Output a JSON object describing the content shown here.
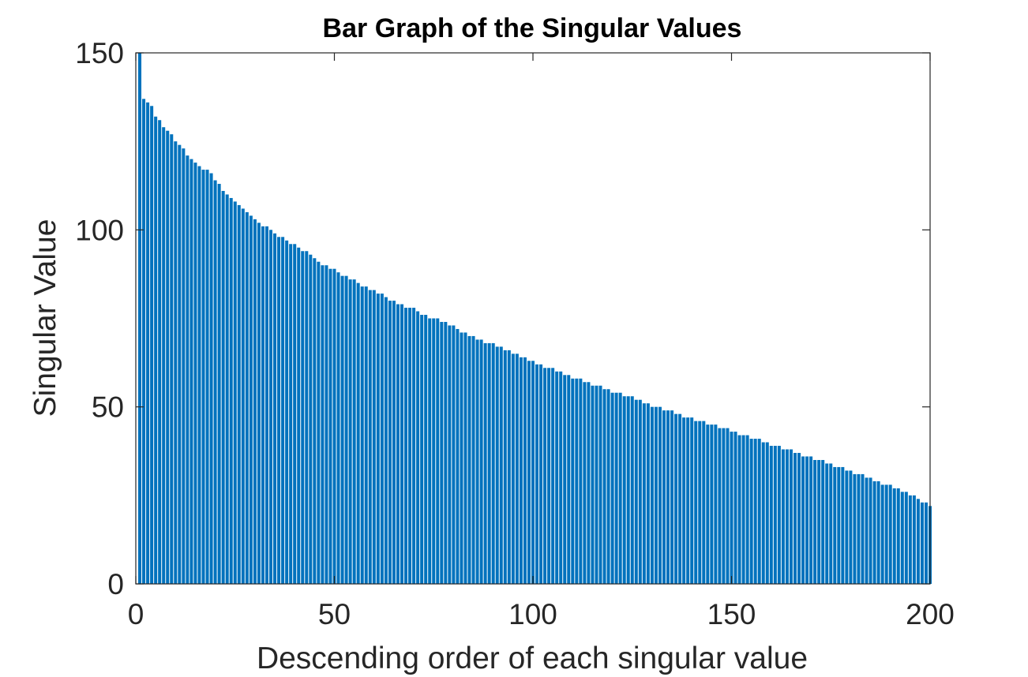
{
  "chart_data": {
    "type": "bar",
    "title": "Bar Graph of the Singular Values",
    "xlabel": "Descending order of each singular value",
    "ylabel": "Singular Value",
    "xlim": [
      0,
      200
    ],
    "ylim": [
      0,
      150
    ],
    "x_ticks": [
      "0",
      "50",
      "100",
      "150",
      "200"
    ],
    "y_ticks": [
      "0",
      "50",
      "100",
      "150"
    ],
    "grid": false,
    "bar_color": "#0072BD",
    "x": [
      1,
      2,
      3,
      4,
      5,
      6,
      7,
      8,
      9,
      10,
      11,
      12,
      13,
      14,
      15,
      16,
      17,
      18,
      19,
      20,
      21,
      22,
      23,
      24,
      25,
      26,
      27,
      28,
      29,
      30,
      31,
      32,
      33,
      34,
      35,
      36,
      37,
      38,
      39,
      40,
      41,
      42,
      43,
      44,
      45,
      46,
      47,
      48,
      49,
      50,
      51,
      52,
      53,
      54,
      55,
      56,
      57,
      58,
      59,
      60,
      61,
      62,
      63,
      64,
      65,
      66,
      67,
      68,
      69,
      70,
      71,
      72,
      73,
      74,
      75,
      76,
      77,
      78,
      79,
      80,
      81,
      82,
      83,
      84,
      85,
      86,
      87,
      88,
      89,
      90,
      91,
      92,
      93,
      94,
      95,
      96,
      97,
      98,
      99,
      100,
      101,
      102,
      103,
      104,
      105,
      106,
      107,
      108,
      109,
      110,
      111,
      112,
      113,
      114,
      115,
      116,
      117,
      118,
      119,
      120,
      121,
      122,
      123,
      124,
      125,
      126,
      127,
      128,
      129,
      130,
      131,
      132,
      133,
      134,
      135,
      136,
      137,
      138,
      139,
      140,
      141,
      142,
      143,
      144,
      145,
      146,
      147,
      148,
      149,
      150,
      151,
      152,
      153,
      154,
      155,
      156,
      157,
      158,
      159,
      160,
      161,
      162,
      163,
      164,
      165,
      166,
      167,
      168,
      169,
      170,
      171,
      172,
      173,
      174,
      175,
      176,
      177,
      178,
      179,
      180,
      181,
      182,
      183,
      184,
      185,
      186,
      187,
      188,
      189,
      190,
      191,
      192,
      193,
      194,
      195,
      196,
      197,
      198,
      199,
      200
    ],
    "values": [
      150,
      137,
      136,
      135,
      132,
      131,
      129,
      128,
      127,
      125,
      124,
      123,
      121,
      120,
      119,
      118,
      117,
      117,
      116,
      114,
      113,
      111,
      110,
      109,
      108,
      107,
      106,
      105,
      104,
      103,
      102,
      101,
      101,
      100,
      99,
      98,
      98,
      97,
      96,
      96,
      95,
      94,
      94,
      93,
      92,
      91,
      90,
      90,
      89,
      89,
      88,
      87,
      87,
      86,
      86,
      85,
      84,
      84,
      83,
      83,
      82,
      82,
      81,
      80,
      80,
      79,
      79,
      78,
      78,
      78,
      77,
      76,
      76,
      75,
      75,
      75,
      74,
      74,
      73,
      73,
      72,
      71,
      71,
      70,
      70,
      69,
      69,
      68,
      68,
      68,
      67,
      67,
      66,
      66,
      65,
      65,
      64,
      64,
      63,
      63,
      62,
      62,
      61,
      61,
      61,
      60,
      60,
      59,
      59,
      58,
      58,
      58,
      57,
      57,
      56,
      56,
      56,
      55,
      55,
      54,
      54,
      54,
      53,
      53,
      53,
      52,
      52,
      51,
      51,
      50,
      50,
      50,
      49,
      49,
      49,
      48,
      48,
      47,
      47,
      47,
      46,
      46,
      46,
      45,
      45,
      45,
      44,
      44,
      44,
      43,
      43,
      42,
      42,
      42,
      41,
      41,
      41,
      40,
      40,
      39,
      39,
      39,
      38,
      38,
      38,
      37,
      37,
      36,
      36,
      36,
      35,
      35,
      35,
      34,
      34,
      33,
      33,
      33,
      32,
      32,
      31,
      31,
      31,
      30,
      30,
      29,
      29,
      28,
      28,
      28,
      27,
      27,
      26,
      26,
      25,
      25,
      24,
      23,
      23,
      22
    ]
  }
}
